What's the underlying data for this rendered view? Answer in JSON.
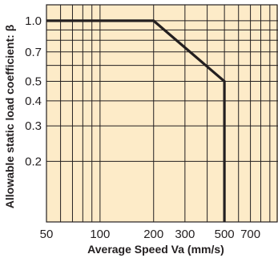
{
  "chart_data": {
    "type": "line",
    "xscale": "log",
    "yscale": "log",
    "xlim": [
      50,
      1000
    ],
    "ylim": [
      0.1,
      1.2
    ],
    "xlabel": "Average Speed Va (mm/s)",
    "ylabel": "Allowable static load coefficient: β",
    "x_ticks": [
      {
        "value": 50,
        "label": "50"
      },
      {
        "value": 100,
        "label": "100"
      },
      {
        "value": 200,
        "label": "200"
      },
      {
        "value": 300,
        "label": "300"
      },
      {
        "value": 500,
        "label": "500"
      },
      {
        "value": 700,
        "label": "700"
      }
    ],
    "x_grid": [
      60,
      70,
      80,
      90,
      100,
      200,
      300,
      400,
      500,
      600,
      700,
      800,
      900
    ],
    "y_ticks": [
      {
        "value": 1.0,
        "label": "1.0"
      },
      {
        "value": 0.7,
        "label": "0.7"
      },
      {
        "value": 0.5,
        "label": "0.5"
      },
      {
        "value": 0.4,
        "label": "0.4"
      },
      {
        "value": 0.3,
        "label": "0.3"
      },
      {
        "value": 0.2,
        "label": "0.2"
      }
    ],
    "y_grid": [
      0.2,
      0.3,
      0.4,
      0.5,
      0.6,
      0.7,
      0.8,
      0.9,
      1.0
    ],
    "series": [
      {
        "x": [
          50,
          200,
          500,
          500
        ],
        "y": [
          1.0,
          1.0,
          0.5,
          0.1
        ]
      }
    ],
    "grid": true,
    "colors": {
      "background": "#fdebc8",
      "grid": "#231f20",
      "line": "#231f20"
    }
  }
}
